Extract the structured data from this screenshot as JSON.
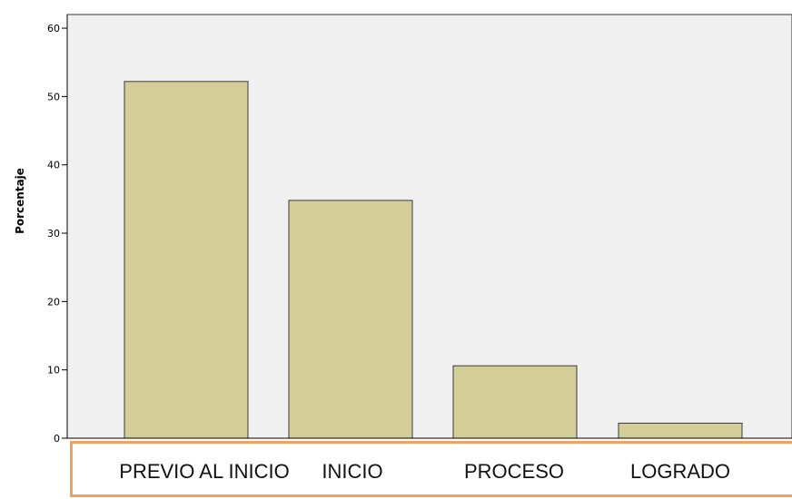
{
  "chart_data": {
    "type": "bar",
    "categories": [
      "PREVIO AL INICIO",
      "INICIO",
      "PROCESO",
      "LOGRADO"
    ],
    "values": [
      52.2,
      34.8,
      10.6,
      2.2
    ],
    "title": "",
    "xlabel": "",
    "ylabel": "Porcentaje",
    "ylim": [
      0,
      62
    ],
    "yticks": [
      "0",
      "10",
      "20",
      "30",
      "40",
      "50",
      "60"
    ],
    "grid": false,
    "legend": "none"
  },
  "colors": {
    "bar_fill": "#d3ce98",
    "bar_stroke": "#3a3a3a",
    "plot_background": "#f0f0f0",
    "category_border": "#f0a060"
  }
}
